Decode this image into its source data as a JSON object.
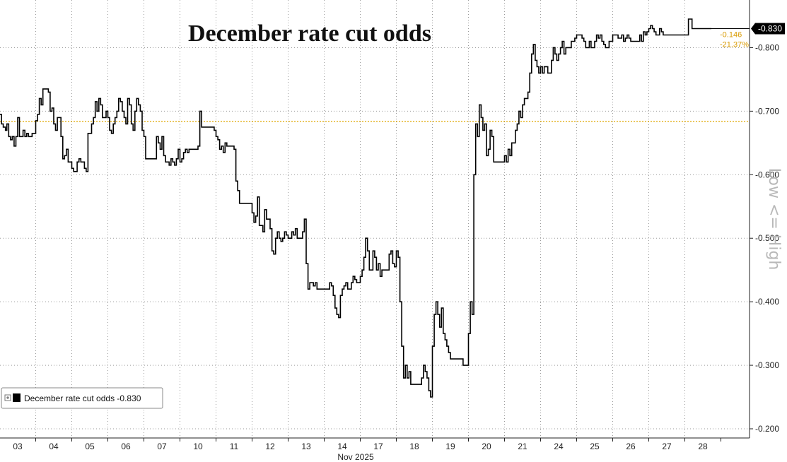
{
  "chart_data": {
    "type": "line",
    "title": "December rate cut odds",
    "side_label": "Low <= High",
    "x_month_label": "Nov 2025",
    "categories": [
      "03",
      "04",
      "05",
      "06",
      "07",
      "10",
      "11",
      "12",
      "13",
      "14",
      "17",
      "18",
      "19",
      "20",
      "21",
      "24",
      "25",
      "26",
      "27",
      "28"
    ],
    "yticks": [
      -0.2,
      -0.3,
      -0.4,
      -0.5,
      -0.6,
      -0.7,
      -0.8
    ],
    "ytick_labels": [
      "-0.200",
      "-0.300",
      "-0.400",
      "-0.500",
      "-0.600",
      "-0.700",
      "-0.800"
    ],
    "ylim": [
      -0.19,
      -0.875
    ],
    "grid": true,
    "legend_position": "bottom-left",
    "reference_line": {
      "value": -0.684,
      "color": "#e0a800"
    },
    "last_value_label": "-0.830",
    "annotations": [
      "-0.146",
      "-21.37%"
    ],
    "colors": {
      "line": "#000000",
      "reference": "#e0a800",
      "annotation": "#d99a00",
      "last_badge": "#000000",
      "grid": "#9a9a9a"
    },
    "series": [
      {
        "name": "December rate cut odds",
        "legend_label": "December rate cut odds  -0.830",
        "x": [
          0.0,
          0.05,
          0.1,
          0.16,
          0.2,
          0.25,
          0.3,
          0.35,
          0.4,
          0.45,
          0.5,
          0.55,
          0.6,
          0.65,
          0.7,
          0.75,
          0.8,
          0.85,
          0.9,
          0.95,
          1.0,
          1.05,
          1.1,
          1.15,
          1.2,
          1.25,
          1.3,
          1.35,
          1.4,
          1.45,
          1.5,
          1.55,
          1.6,
          1.65,
          1.7,
          1.75,
          1.8,
          1.85,
          1.9,
          1.95,
          2.0,
          2.05,
          2.1,
          2.15,
          2.2,
          2.25,
          2.3,
          2.35,
          2.4,
          2.45,
          2.5,
          2.55,
          2.6,
          2.65,
          2.7,
          2.75,
          2.8,
          2.85,
          2.9,
          2.95,
          3.0,
          3.05,
          3.1,
          3.15,
          3.2,
          3.25,
          3.3,
          3.35,
          3.4,
          3.45,
          3.5,
          3.55,
          3.6,
          3.65,
          3.7,
          3.75,
          3.8,
          3.85,
          3.9,
          3.95,
          4.0,
          4.05,
          4.1,
          4.15,
          4.2,
          4.25,
          4.3,
          4.35,
          4.4,
          4.45,
          4.5,
          4.55,
          4.6,
          4.65,
          4.7,
          4.75,
          4.8,
          4.85,
          4.9,
          4.95,
          5.0,
          5.05,
          5.1,
          5.15,
          5.2,
          5.25,
          5.3,
          5.35,
          5.4,
          5.45,
          5.5,
          5.55,
          5.6,
          5.65,
          5.7,
          5.75,
          5.8,
          5.85,
          5.9,
          5.95,
          6.0,
          6.05,
          6.1,
          6.15,
          6.2,
          6.25,
          6.3,
          6.35,
          6.4,
          6.45,
          6.5,
          6.55,
          6.6,
          6.65,
          6.7,
          6.75,
          6.8,
          6.85,
          6.9,
          6.95,
          7.0,
          7.05,
          7.1,
          7.15,
          7.2,
          7.25,
          7.3,
          7.35,
          7.4,
          7.45,
          7.5,
          7.55,
          7.6,
          7.65,
          7.7,
          7.75,
          7.8,
          7.85,
          7.9,
          7.95,
          8.0,
          8.05,
          8.1,
          8.15,
          8.2,
          8.25,
          8.3,
          8.35,
          8.4,
          8.45,
          8.5,
          8.55,
          8.6,
          8.65,
          8.7,
          8.75,
          8.8,
          8.85,
          8.9,
          8.95,
          9.0,
          9.05,
          9.1,
          9.15,
          9.2,
          9.25,
          9.3,
          9.35,
          9.4,
          9.45,
          9.5,
          9.55,
          9.6,
          9.65,
          9.7,
          9.75,
          9.8,
          9.85,
          9.9,
          9.95,
          10.0,
          10.05,
          10.1,
          10.15,
          10.2,
          10.25,
          10.3,
          10.35,
          10.4,
          10.45,
          10.5,
          10.55,
          10.6,
          10.65,
          10.7,
          10.75,
          10.8,
          10.85,
          10.9,
          10.95,
          11.0,
          11.05,
          11.1,
          11.15,
          11.2,
          11.25,
          11.3,
          11.35,
          11.4,
          11.45,
          11.5,
          11.55,
          11.6,
          11.65,
          11.7,
          11.75,
          11.8,
          11.85,
          11.9,
          11.95,
          12.0,
          12.05,
          12.1,
          12.15,
          12.2,
          12.25,
          12.3,
          12.35,
          12.4,
          12.45,
          12.5,
          12.55,
          12.6,
          12.65,
          12.7,
          12.75,
          12.8,
          12.85,
          12.9,
          12.95,
          13.0,
          13.05,
          13.1,
          13.15,
          13.2,
          13.25,
          13.3,
          13.35,
          13.4,
          13.45,
          13.5,
          13.55,
          13.6,
          13.65,
          13.7,
          13.75,
          13.8,
          13.85,
          13.9,
          13.95,
          14.0,
          14.05,
          14.1,
          14.15,
          14.2,
          14.25,
          14.3,
          14.35,
          14.4,
          14.45,
          14.5,
          14.55,
          14.6,
          14.65,
          14.7,
          14.75,
          14.8,
          14.85,
          14.9,
          14.95,
          15.0,
          15.05,
          15.1,
          15.15,
          15.2,
          15.25,
          15.3,
          15.35,
          15.4,
          15.45,
          15.5,
          15.55,
          15.6,
          15.65,
          15.7,
          15.75,
          15.8,
          15.85,
          15.9,
          15.95,
          16.0,
          16.05,
          16.1,
          16.15,
          16.2,
          16.25,
          16.3,
          16.35,
          16.4,
          16.45,
          16.5,
          16.55,
          16.6,
          16.65,
          16.7,
          16.75,
          16.8,
          16.85,
          16.9,
          16.95,
          17.0,
          17.05,
          17.1,
          17.15,
          17.2,
          17.25,
          17.3,
          17.35,
          17.4,
          17.45,
          17.5,
          17.55,
          17.6,
          17.65,
          17.7,
          17.75,
          17.8,
          17.85,
          17.9,
          17.95,
          18.0,
          18.05,
          18.1,
          18.15,
          18.2,
          18.25,
          18.3,
          18.35,
          18.4,
          18.45,
          18.5,
          18.55,
          18.6,
          18.65,
          18.7,
          18.75,
          18.8,
          18.85,
          18.9,
          18.95,
          19.0,
          19.1,
          19.2,
          19.3,
          19.4,
          19.5
        ],
        "values": [
          -0.695,
          -0.68,
          -0.675,
          -0.67,
          -0.68,
          -0.66,
          -0.655,
          -0.66,
          -0.645,
          -0.66,
          -0.69,
          -0.66,
          -0.66,
          -0.67,
          -0.66,
          -0.665,
          -0.66,
          -0.66,
          -0.665,
          -0.665,
          -0.685,
          -0.695,
          -0.72,
          -0.71,
          -0.735,
          -0.735,
          -0.735,
          -0.73,
          -0.7,
          -0.705,
          -0.68,
          -0.67,
          -0.69,
          -0.69,
          -0.66,
          -0.625,
          -0.63,
          -0.64,
          -0.62,
          -0.62,
          -0.61,
          -0.605,
          -0.605,
          -0.62,
          -0.625,
          -0.62,
          -0.62,
          -0.61,
          -0.605,
          -0.665,
          -0.665,
          -0.68,
          -0.69,
          -0.715,
          -0.7,
          -0.72,
          -0.71,
          -0.69,
          -0.69,
          -0.7,
          -0.69,
          -0.67,
          -0.665,
          -0.68,
          -0.69,
          -0.7,
          -0.72,
          -0.715,
          -0.7,
          -0.69,
          -0.68,
          -0.72,
          -0.71,
          -0.68,
          -0.67,
          -0.7,
          -0.72,
          -0.71,
          -0.7,
          -0.67,
          -0.66,
          -0.625,
          -0.625,
          -0.625,
          -0.625,
          -0.625,
          -0.625,
          -0.66,
          -0.65,
          -0.64,
          -0.66,
          -0.63,
          -0.62,
          -0.62,
          -0.615,
          -0.625,
          -0.62,
          -0.615,
          -0.625,
          -0.64,
          -0.62,
          -0.625,
          -0.635,
          -0.64,
          -0.635,
          -0.64,
          -0.64,
          -0.64,
          -0.64,
          -0.64,
          -0.645,
          -0.7,
          -0.675,
          -0.675,
          -0.675,
          -0.675,
          -0.675,
          -0.675,
          -0.675,
          -0.67,
          -0.66,
          -0.655,
          -0.64,
          -0.645,
          -0.635,
          -0.65,
          -0.645,
          -0.645,
          -0.645,
          -0.645,
          -0.64,
          -0.59,
          -0.575,
          -0.555,
          -0.555,
          -0.555,
          -0.555,
          -0.555,
          -0.555,
          -0.555,
          -0.54,
          -0.525,
          -0.535,
          -0.565,
          -0.52,
          -0.52,
          -0.51,
          -0.545,
          -0.53,
          -0.53,
          -0.515,
          -0.48,
          -0.475,
          -0.5,
          -0.51,
          -0.5,
          -0.495,
          -0.5,
          -0.51,
          -0.505,
          -0.5,
          -0.5,
          -0.51,
          -0.505,
          -0.515,
          -0.5,
          -0.5,
          -0.5,
          -0.51,
          -0.53,
          -0.46,
          -0.42,
          -0.43,
          -0.43,
          -0.425,
          -0.43,
          -0.42,
          -0.42,
          -0.42,
          -0.42,
          -0.42,
          -0.42,
          -0.42,
          -0.43,
          -0.425,
          -0.41,
          -0.39,
          -0.38,
          -0.375,
          -0.41,
          -0.42,
          -0.425,
          -0.43,
          -0.42,
          -0.42,
          -0.43,
          -0.44,
          -0.435,
          -0.43,
          -0.43,
          -0.44,
          -0.45,
          -0.47,
          -0.5,
          -0.48,
          -0.45,
          -0.45,
          -0.48,
          -0.47,
          -0.45,
          -0.46,
          -0.44,
          -0.45,
          -0.45,
          -0.45,
          -0.45,
          -0.475,
          -0.48,
          -0.46,
          -0.455,
          -0.48,
          -0.47,
          -0.4,
          -0.33,
          -0.28,
          -0.3,
          -0.28,
          -0.29,
          -0.27,
          -0.27,
          -0.27,
          -0.27,
          -0.27,
          -0.27,
          -0.28,
          -0.3,
          -0.29,
          -0.28,
          -0.26,
          -0.25,
          -0.33,
          -0.38,
          -0.4,
          -0.38,
          -0.36,
          -0.39,
          -0.35,
          -0.34,
          -0.33,
          -0.32,
          -0.31,
          -0.31,
          -0.31,
          -0.31,
          -0.31,
          -0.31,
          -0.31,
          -0.3,
          -0.3,
          -0.3,
          -0.35,
          -0.4,
          -0.38,
          -0.6,
          -0.68,
          -0.66,
          -0.71,
          -0.69,
          -0.67,
          -0.68,
          -0.63,
          -0.64,
          -0.67,
          -0.66,
          -0.62,
          -0.62,
          -0.62,
          -0.62,
          -0.62,
          -0.62,
          -0.63,
          -0.62,
          -0.64,
          -0.63,
          -0.65,
          -0.65,
          -0.67,
          -0.68,
          -0.7,
          -0.69,
          -0.71,
          -0.72,
          -0.72,
          -0.73,
          -0.76,
          -0.79,
          -0.805,
          -0.78,
          -0.77,
          -0.76,
          -0.77,
          -0.76,
          -0.77,
          -0.77,
          -0.76,
          -0.76,
          -0.78,
          -0.8,
          -0.79,
          -0.78,
          -0.79,
          -0.8,
          -0.81,
          -0.79,
          -0.8,
          -0.8,
          -0.8,
          -0.81,
          -0.81,
          -0.815,
          -0.82,
          -0.82,
          -0.82,
          -0.815,
          -0.81,
          -0.8,
          -0.8,
          -0.81,
          -0.8,
          -0.8,
          -0.81,
          -0.82,
          -0.815,
          -0.82,
          -0.81,
          -0.805,
          -0.8,
          -0.8,
          -0.81,
          -0.81,
          -0.82,
          -0.82,
          -0.82,
          -0.815,
          -0.815,
          -0.82,
          -0.81,
          -0.815,
          -0.82,
          -0.815,
          -0.81,
          -0.81,
          -0.81,
          -0.81,
          -0.81,
          -0.82,
          -0.81,
          -0.825,
          -0.82,
          -0.825,
          -0.83,
          -0.835,
          -0.83,
          -0.825,
          -0.82,
          -0.82,
          -0.83,
          -0.825,
          -0.82,
          -0.82,
          -0.82,
          -0.82,
          -0.82,
          -0.82,
          -0.82,
          -0.82,
          -0.82,
          -0.82,
          -0.82,
          -0.82,
          -0.82,
          -0.845,
          -0.83,
          -0.83,
          -0.83,
          -0.83
        ]
      }
    ]
  }
}
